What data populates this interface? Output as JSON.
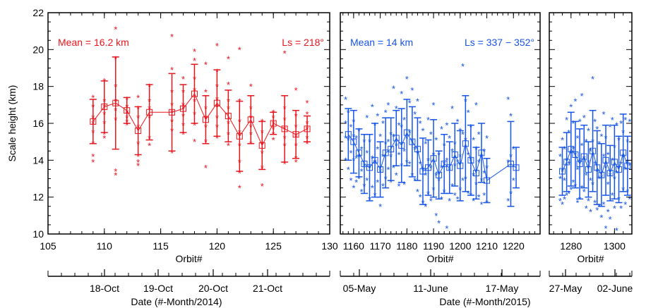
{
  "chart_data": [
    {
      "type": "scatter",
      "panel": "left",
      "ylabel": "Scale height (km)",
      "xlabel": "Orbit#",
      "date_label": "Date (#-Month/2014)",
      "ylim": [
        10,
        22
      ],
      "xlim": [
        105,
        130
      ],
      "x_ticks": [
        "105",
        "110",
        "115",
        "120",
        "125",
        "130"
      ],
      "y_ticks": [
        "10",
        "12",
        "14",
        "16",
        "18",
        "20",
        "22"
      ],
      "date_ticks": [
        "18-Oct",
        "19-Oct",
        "20-Oct",
        "21-Oct"
      ],
      "color": "#e8141c",
      "annotations": {
        "mean": "Mean = 16.2 km",
        "ls": "Ls = 218°"
      },
      "mean_series": [
        {
          "x": 109,
          "y": 16.1,
          "err": 1.2
        },
        {
          "x": 110,
          "y": 16.9,
          "err": 1.4
        },
        {
          "x": 111,
          "y": 17.1,
          "err": 2.5
        },
        {
          "x": 112,
          "y": 16.7,
          "err": 0.7
        },
        {
          "x": 113,
          "y": 15.6,
          "err": 1.3
        },
        {
          "x": 114,
          "y": 16.6,
          "err": 1.5
        },
        {
          "x": 116,
          "y": 16.6,
          "err": 2.1
        },
        {
          "x": 117,
          "y": 16.8,
          "err": 1.3
        },
        {
          "x": 118,
          "y": 17.6,
          "err": 1.6
        },
        {
          "x": 119,
          "y": 16.2,
          "err": 1.3
        },
        {
          "x": 120,
          "y": 17.1,
          "err": 1.8
        },
        {
          "x": 121,
          "y": 16.4,
          "err": 1.4
        },
        {
          "x": 122,
          "y": 15.3,
          "err": 1.9
        },
        {
          "x": 123,
          "y": 16.2,
          "err": 1.3
        },
        {
          "x": 124,
          "y": 14.8,
          "err": 1.3
        },
        {
          "x": 125,
          "y": 16.0,
          "err": 0.6
        },
        {
          "x": 126,
          "y": 15.7,
          "err": 1.8
        },
        {
          "x": 127,
          "y": 15.4,
          "err": 1.3
        },
        {
          "x": 128,
          "y": 15.7,
          "err": 0.7
        }
      ],
      "points_x": [
        109,
        109,
        109,
        109,
        109,
        109,
        109,
        109,
        110,
        110,
        110,
        110,
        110,
        110,
        110,
        111,
        111,
        111,
        111,
        111,
        111,
        111,
        111,
        112,
        112,
        112,
        112,
        112,
        112,
        113,
        113,
        113,
        113,
        113,
        113,
        113,
        113,
        114,
        114,
        114,
        114,
        114,
        114,
        116,
        116,
        116,
        116,
        116,
        116,
        116,
        116,
        117,
        117,
        117,
        117,
        117,
        117,
        117,
        118,
        118,
        118,
        118,
        118,
        118,
        118,
        118,
        119,
        119,
        119,
        119,
        119,
        119,
        119,
        120,
        120,
        120,
        120,
        120,
        120,
        120,
        120,
        121,
        121,
        121,
        121,
        121,
        121,
        121,
        122,
        122,
        122,
        122,
        122,
        122,
        122,
        122,
        123,
        123,
        123,
        123,
        123,
        123,
        124,
        124,
        124,
        124,
        124,
        124,
        125,
        125,
        125,
        125,
        125,
        125,
        126,
        126,
        126,
        126,
        126,
        126,
        126,
        127,
        127,
        127,
        127,
        127,
        127,
        127,
        128,
        128,
        128,
        128,
        128,
        128
      ],
      "points_y": [
        17.4,
        16.9,
        16.3,
        16.0,
        15.5,
        14.9,
        14.2,
        13.9,
        18.3,
        17.2,
        16.9,
        16.5,
        16.0,
        15.4,
        15.2,
        21.1,
        19.5,
        18.0,
        17.2,
        16.7,
        16.2,
        13.4,
        13.2,
        17.3,
        16.9,
        16.6,
        16.3,
        16.1,
        15.9,
        17.4,
        16.8,
        16.3,
        15.8,
        14.9,
        14.2,
        13.9,
        13.7,
        18.0,
        17.2,
        16.8,
        16.3,
        15.2,
        14.8,
        20.7,
        18.9,
        17.7,
        17.0,
        16.6,
        16.1,
        15.6,
        14.4,
        18.4,
        17.7,
        17.0,
        16.8,
        16.4,
        15.9,
        15.4,
        19.9,
        19.4,
        18.4,
        17.8,
        17.2,
        16.5,
        15.9,
        15.0,
        19.2,
        17.7,
        16.8,
        16.3,
        15.8,
        15.0,
        13.6,
        20.2,
        18.8,
        18.0,
        17.3,
        16.9,
        16.3,
        15.8,
        15.2,
        19.5,
        18.1,
        17.2,
        16.8,
        16.0,
        15.4,
        14.8,
        20.0,
        17.2,
        16.1,
        15.5,
        14.8,
        13.9,
        13.3,
        12.5,
        18.0,
        16.8,
        16.3,
        15.8,
        15.4,
        14.9,
        16.1,
        15.5,
        14.9,
        14.4,
        13.6,
        12.6,
        16.6,
        16.3,
        16.0,
        15.7,
        15.4,
        15.1,
        19.8,
        16.8,
        16.2,
        15.7,
        15.2,
        14.8,
        13.8,
        17.8,
        16.4,
        15.8,
        15.3,
        14.8,
        14.1,
        13.9,
        17.1,
        16.5,
        16.0,
        15.7,
        15.2,
        14.9
      ]
    },
    {
      "type": "scatter",
      "panel": "middle",
      "xlabel": "Orbit#",
      "date_label": "Date (#-Month/2015)",
      "xlim": [
        1155,
        1230
      ],
      "x_ticks": [
        "1160",
        "1170",
        "1180",
        "1190",
        "1200",
        "1210",
        "1220"
      ],
      "date_ticks": [
        "05-May",
        "11-June",
        "17-May"
      ],
      "color": "#1554e6",
      "annotations": {
        "mean": "Mean = 14 km",
        "ls": "Ls = 337 − 352°"
      },
      "mean_series": [
        {
          "x": 1158,
          "y": 15.4,
          "err": 1.4
        },
        {
          "x": 1160,
          "y": 15.0,
          "err": 1.7
        },
        {
          "x": 1162,
          "y": 14.4,
          "err": 1.3
        },
        {
          "x": 1164,
          "y": 13.8,
          "err": 1.6
        },
        {
          "x": 1166,
          "y": 13.6,
          "err": 1.8
        },
        {
          "x": 1168,
          "y": 14.0,
          "err": 2.0
        },
        {
          "x": 1170,
          "y": 13.5,
          "err": 1.5
        },
        {
          "x": 1172,
          "y": 14.4,
          "err": 1.9
        },
        {
          "x": 1174,
          "y": 14.6,
          "err": 1.7
        },
        {
          "x": 1176,
          "y": 15.2,
          "err": 1.5
        },
        {
          "x": 1178,
          "y": 14.8,
          "err": 2.0
        },
        {
          "x": 1180,
          "y": 15.5,
          "err": 1.8
        },
        {
          "x": 1182,
          "y": 15.0,
          "err": 1.9
        },
        {
          "x": 1184,
          "y": 14.6,
          "err": 1.7
        },
        {
          "x": 1186,
          "y": 13.4,
          "err": 1.8
        },
        {
          "x": 1188,
          "y": 13.6,
          "err": 1.5
        },
        {
          "x": 1190,
          "y": 14.1,
          "err": 2.1
        },
        {
          "x": 1192,
          "y": 13.2,
          "err": 1.3
        },
        {
          "x": 1194,
          "y": 13.8,
          "err": 1.6
        },
        {
          "x": 1196,
          "y": 13.6,
          "err": 1.4
        },
        {
          "x": 1198,
          "y": 14.3,
          "err": 1.7
        },
        {
          "x": 1200,
          "y": 13.7,
          "err": 1.9
        },
        {
          "x": 1202,
          "y": 14.9,
          "err": 2.6
        },
        {
          "x": 1204,
          "y": 14.0,
          "err": 1.9
        },
        {
          "x": 1206,
          "y": 13.3,
          "err": 1.4
        },
        {
          "x": 1208,
          "y": 14.4,
          "err": 1.6
        },
        {
          "x": 1210,
          "y": 12.9,
          "err": 1.2
        },
        {
          "x": 1219,
          "y": 13.8,
          "err": 2.3
        },
        {
          "x": 1221,
          "y": 13.6,
          "err": 1.1
        }
      ],
      "points_x": [
        1157,
        1157,
        1157,
        1157,
        1158,
        1158,
        1158,
        1159,
        1159,
        1159,
        1160,
        1160,
        1160,
        1160,
        1161,
        1161,
        1161,
        1162,
        1162,
        1162,
        1163,
        1163,
        1163,
        1164,
        1164,
        1164,
        1165,
        1165,
        1165,
        1166,
        1166,
        1166,
        1167,
        1167,
        1167,
        1168,
        1168,
        1168,
        1169,
        1169,
        1169,
        1170,
        1170,
        1170,
        1171,
        1171,
        1171,
        1172,
        1172,
        1172,
        1173,
        1173,
        1173,
        1174,
        1174,
        1174,
        1175,
        1175,
        1175,
        1176,
        1176,
        1176,
        1177,
        1177,
        1177,
        1178,
        1178,
        1178,
        1179,
        1179,
        1179,
        1180,
        1180,
        1180,
        1181,
        1181,
        1181,
        1182,
        1182,
        1182,
        1183,
        1183,
        1183,
        1184,
        1184,
        1184,
        1185,
        1185,
        1185,
        1186,
        1186,
        1186,
        1187,
        1187,
        1187,
        1188,
        1188,
        1188,
        1189,
        1189,
        1189,
        1190,
        1190,
        1190,
        1191,
        1191,
        1191,
        1192,
        1192,
        1192,
        1193,
        1193,
        1193,
        1194,
        1194,
        1194,
        1195,
        1195,
        1195,
        1196,
        1196,
        1196,
        1197,
        1197,
        1197,
        1198,
        1198,
        1198,
        1199,
        1199,
        1199,
        1200,
        1200,
        1200,
        1201,
        1201,
        1201,
        1202,
        1202,
        1202,
        1203,
        1203,
        1203,
        1204,
        1204,
        1204,
        1205,
        1205,
        1205,
        1206,
        1206,
        1206,
        1207,
        1207,
        1207,
        1208,
        1208,
        1208,
        1209,
        1209,
        1209,
        1210,
        1210,
        1210,
        1218,
        1218,
        1218,
        1219,
        1219,
        1219,
        1220,
        1220,
        1220,
        1221,
        1221
      ],
      "points_y": [
        17.3,
        16.0,
        15.2,
        14.0,
        16.6,
        15.1,
        13.5,
        15.8,
        14.4,
        12.9,
        16.1,
        15.3,
        14.0,
        12.5,
        15.2,
        14.1,
        12.8,
        15.6,
        14.2,
        13.0,
        14.6,
        13.4,
        12.3,
        15.0,
        13.7,
        12.6,
        16.3,
        14.4,
        12.9,
        15.0,
        13.6,
        11.9,
        16.9,
        14.1,
        12.5,
        15.9,
        13.9,
        12.1,
        16.4,
        14.6,
        12.8,
        15.3,
        13.4,
        11.5,
        16.0,
        14.2,
        12.6,
        16.6,
        14.9,
        13.0,
        17.0,
        15.0,
        13.5,
        15.4,
        14.2,
        12.8,
        17.9,
        15.3,
        13.6,
        16.8,
        14.8,
        13.2,
        15.9,
        14.3,
        12.6,
        17.6,
        15.8,
        13.7,
        16.2,
        14.5,
        12.7,
        18.4,
        15.2,
        13.9,
        17.1,
        15.5,
        13.8,
        17.8,
        15.0,
        13.2,
        16.5,
        14.6,
        12.9,
        17.2,
        14.4,
        12.3,
        16.0,
        13.8,
        12.0,
        15.6,
        13.5,
        11.7,
        14.9,
        13.2,
        11.5,
        16.2,
        14.0,
        12.2,
        15.4,
        13.6,
        11.8,
        17.0,
        14.3,
        12.4,
        15.1,
        13.2,
        11.0,
        14.3,
        12.9,
        10.6,
        15.7,
        13.6,
        11.9,
        14.8,
        13.8,
        12.3,
        15.9,
        14.0,
        10.3,
        15.2,
        13.5,
        11.8,
        16.8,
        14.5,
        12.6,
        14.9,
        13.7,
        12.1,
        16.1,
        13.9,
        11.9,
        15.6,
        14.2,
        12.4,
        19.1,
        15.4,
        12.9,
        17.2,
        15.1,
        13.0,
        16.6,
        14.3,
        12.2,
        15.8,
        14.0,
        12.1,
        15.1,
        13.2,
        11.8,
        17.0,
        14.6,
        12.7,
        15.4,
        13.9,
        12.0,
        14.2,
        12.9,
        11.6,
        14.5,
        13.3,
        12.1,
        15.2,
        13.6,
        11.7,
        17.3,
        13.9,
        11.8,
        16.4,
        14.2,
        12.2,
        14.6,
        12.9
      ]
    },
    {
      "type": "scatter",
      "panel": "right",
      "xlabel": "Orbit#",
      "xlim": [
        1270,
        1308
      ],
      "x_ticks": [
        "1280",
        "1300"
      ],
      "date_ticks": [
        "27-May",
        "02-June"
      ],
      "color": "#1554e6",
      "mean_series": [
        {
          "x": 1276,
          "y": 13.4,
          "err": 1.3
        },
        {
          "x": 1278,
          "y": 13.9,
          "err": 1.6
        },
        {
          "x": 1280,
          "y": 14.6,
          "err": 2.0
        },
        {
          "x": 1282,
          "y": 14.3,
          "err": 1.8
        },
        {
          "x": 1284,
          "y": 13.8,
          "err": 1.9
        },
        {
          "x": 1286,
          "y": 14.2,
          "err": 1.7
        },
        {
          "x": 1288,
          "y": 13.5,
          "err": 1.5
        },
        {
          "x": 1290,
          "y": 14.5,
          "err": 2.2
        },
        {
          "x": 1292,
          "y": 13.6,
          "err": 2.0
        },
        {
          "x": 1294,
          "y": 13.2,
          "err": 1.7
        },
        {
          "x": 1296,
          "y": 14.0,
          "err": 1.9
        },
        {
          "x": 1298,
          "y": 13.3,
          "err": 1.5
        },
        {
          "x": 1300,
          "y": 13.9,
          "err": 2.0
        },
        {
          "x": 1302,
          "y": 13.5,
          "err": 1.8
        },
        {
          "x": 1304,
          "y": 14.4,
          "err": 2.1
        },
        {
          "x": 1306,
          "y": 13.7,
          "err": 1.6
        }
      ],
      "points_x": [
        1275,
        1275,
        1275,
        1276,
        1276,
        1276,
        1277,
        1277,
        1277,
        1278,
        1278,
        1278,
        1279,
        1279,
        1279,
        1280,
        1280,
        1280,
        1281,
        1281,
        1281,
        1282,
        1282,
        1282,
        1283,
        1283,
        1283,
        1284,
        1284,
        1284,
        1285,
        1285,
        1285,
        1286,
        1286,
        1286,
        1287,
        1287,
        1287,
        1288,
        1288,
        1288,
        1289,
        1289,
        1289,
        1290,
        1290,
        1290,
        1291,
        1291,
        1291,
        1292,
        1292,
        1292,
        1293,
        1293,
        1293,
        1294,
        1294,
        1294,
        1295,
        1295,
        1295,
        1296,
        1296,
        1296,
        1297,
        1297,
        1297,
        1298,
        1298,
        1298,
        1299,
        1299,
        1299,
        1300,
        1300,
        1300,
        1301,
        1301,
        1301,
        1302,
        1302,
        1302,
        1303,
        1303,
        1303,
        1304,
        1304,
        1304,
        1305,
        1305,
        1305,
        1306,
        1306,
        1306,
        1307,
        1307,
        1307
      ],
      "points_y": [
        14.2,
        13.0,
        11.8,
        15.1,
        13.4,
        11.6,
        14.6,
        12.9,
        11.9,
        16.2,
        14.0,
        12.1,
        15.5,
        13.8,
        12.2,
        16.9,
        14.4,
        12.4,
        16.0,
        14.6,
        12.8,
        17.2,
        14.3,
        12.6,
        15.2,
        13.5,
        11.7,
        16.1,
        14.0,
        11.9,
        17.5,
        14.8,
        12.5,
        16.3,
        14.1,
        12.3,
        15.0,
        13.2,
        11.4,
        15.6,
        13.9,
        11.8,
        14.5,
        12.9,
        11.2,
        18.4,
        15.0,
        12.7,
        16.1,
        13.8,
        11.7,
        15.7,
        13.4,
        11.3,
        14.9,
        13.0,
        11.5,
        15.3,
        13.1,
        10.9,
        16.5,
        14.2,
        11.6,
        15.2,
        13.6,
        10.3,
        14.3,
        12.7,
        11.2,
        15.8,
        13.2,
        10.8,
        16.2,
        14.0,
        12.1,
        14.7,
        13.0,
        11.4,
        15.9,
        13.3,
        10.2,
        15.1,
        13.6,
        11.9,
        16.0,
        13.8,
        11.4,
        15.5,
        14.2,
        12.4,
        16.2,
        13.5,
        11.6,
        15.0,
        13.9,
        12.3,
        16.1,
        13.7,
        11.9
      ]
    }
  ]
}
